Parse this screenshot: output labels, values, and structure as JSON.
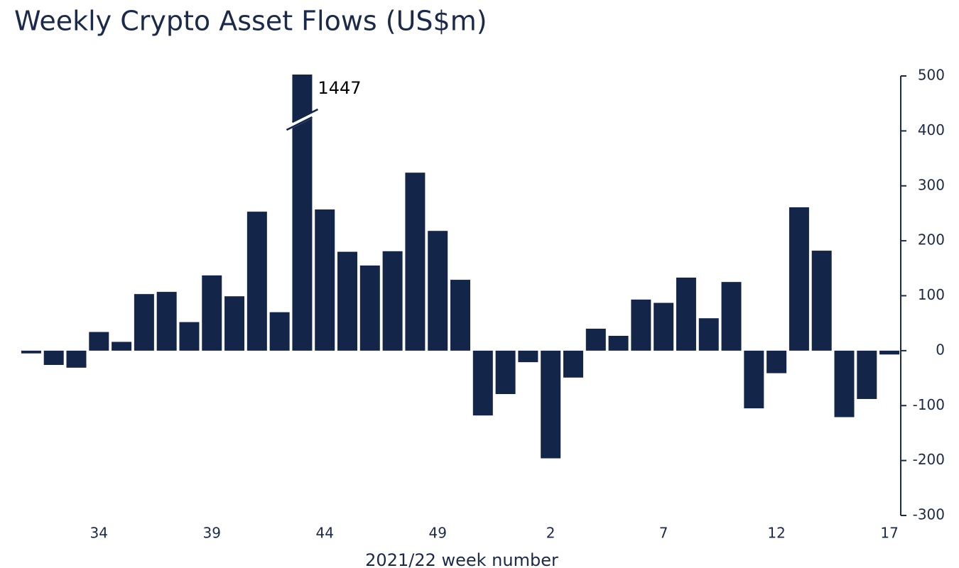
{
  "chart_data": {
    "type": "bar",
    "title": "Weekly Crypto Asset Flows (US$m)",
    "x_label": "2021/22 week number",
    "categories": [
      null,
      null,
      null,
      "34",
      null,
      null,
      null,
      null,
      "39",
      null,
      null,
      null,
      null,
      "44",
      null,
      null,
      null,
      null,
      "49",
      null,
      null,
      null,
      null,
      "2",
      null,
      null,
      null,
      null,
      "7",
      null,
      null,
      null,
      null,
      "12",
      null,
      null,
      null,
      null,
      "17"
    ],
    "values": [
      -5,
      -26,
      -31,
      34,
      16,
      103,
      107,
      52,
      137,
      99,
      253,
      70,
      1447,
      257,
      180,
      155,
      181,
      324,
      218,
      129,
      -118,
      -79,
      -21,
      -196,
      -49,
      40,
      27,
      93,
      87,
      133,
      59,
      125,
      -105,
      -41,
      261,
      182,
      -121,
      -88,
      -7
    ],
    "color": "#14254a",
    "ylim": [
      -300,
      500
    ],
    "yticks": [
      -300,
      -200,
      -100,
      0,
      100,
      200,
      300,
      400,
      500
    ],
    "y_axis_side": "right",
    "grid": false
  }
}
